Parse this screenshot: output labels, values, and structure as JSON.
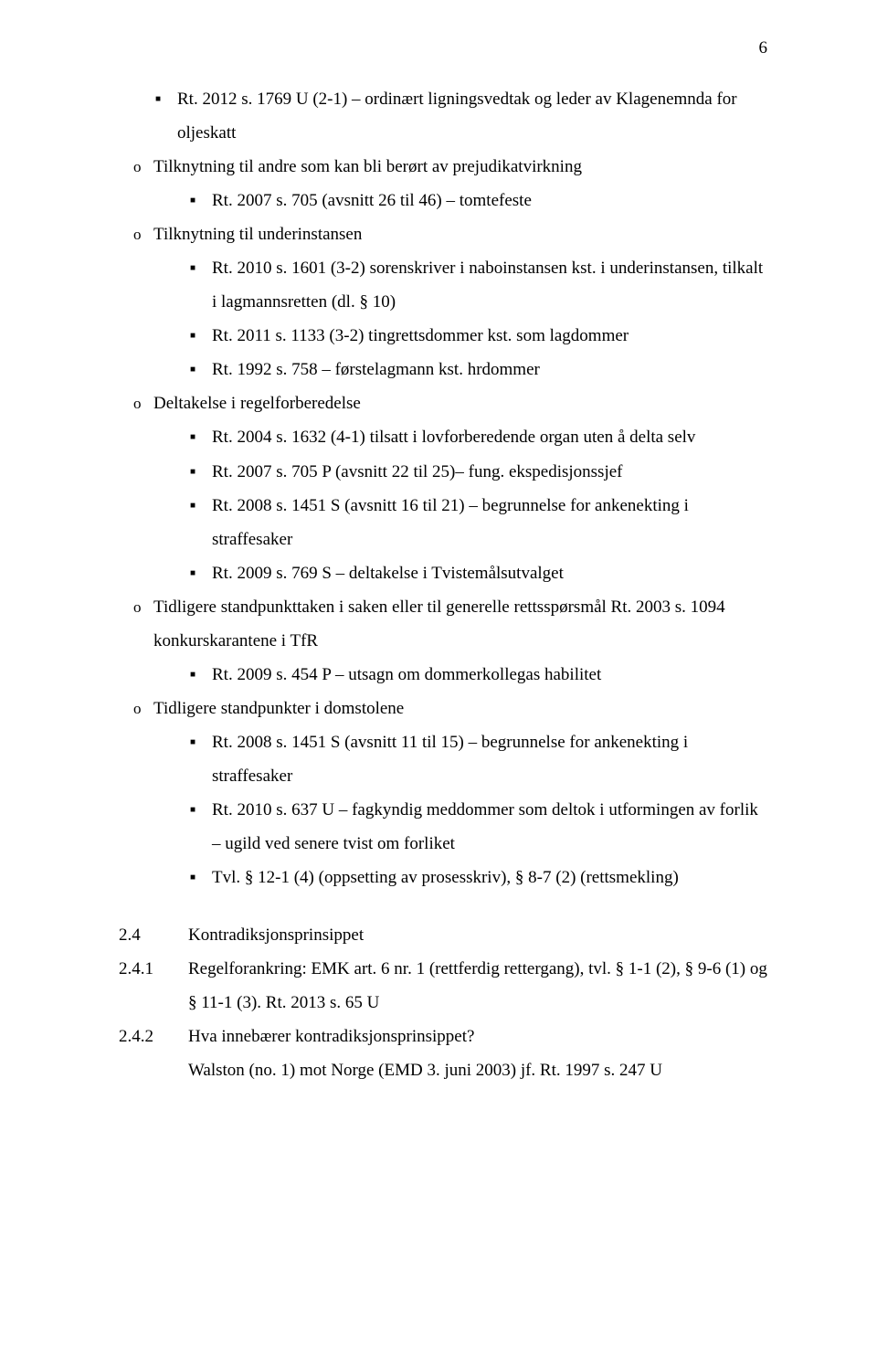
{
  "page_number": "6",
  "bullets": {
    "b1": "Rt. 2012 s. 1769 U (2-1) – ordinært ligningsvedtak og leder av Klagenemnda for oljeskatt",
    "b2": "Tilknytning til andre som kan bli berørt av prejudikatvirkning",
    "b3": "Rt. 2007 s. 705 (avsnitt 26 til 46) – tomtefeste",
    "b4": "Tilknytning til underinstansen",
    "b5": "Rt. 2010 s. 1601 (3-2) sorenskriver i naboinstansen kst. i underinstansen, tilkalt i lagmannsretten (dl. § 10)",
    "b6": "Rt. 2011 s. 1133 (3-2) tingrettsdommer kst. som lagdommer",
    "b7": "Rt. 1992 s. 758 – førstelagmann kst. hrdommer",
    "b8": "Deltakelse i regelforberedelse",
    "b9": "Rt. 2004 s. 1632 (4-1) tilsatt i lovforberedende organ uten å delta selv",
    "b10": "Rt. 2007 s. 705 P (avsnitt 22 til 25)– fung. ekspedisjonssjef",
    "b11": "Rt. 2008 s. 1451 S (avsnitt 16 til 21) – begrunnelse for ankenekting i straffesaker",
    "b12": "Rt. 2009 s. 769 S – deltakelse i Tvistemålsutvalget",
    "b13": "Tidligere standpunkttaken i saken eller til generelle rettsspørsmål Rt. 2003 s. 1094 konkurskarantene i TfR",
    "b14": "Rt. 2009 s. 454 P – utsagn om dommerkollegas habilitet",
    "b15": "Tidligere standpunkter i domstolene",
    "b16": "Rt. 2008 s. 1451 S (avsnitt 11 til 15) – begrunnelse for ankenekting i straffesaker",
    "b17": "Rt. 2010 s. 637 U – fagkyndig meddommer som deltok i utformingen av forlik – ugild ved senere tvist om forliket",
    "b18": "Tvl. § 12-1 (4) (oppsetting av prosesskriv), § 8-7 (2) (rettsmekling)"
  },
  "numbered": {
    "n1_label": "2.4",
    "n1_text": "Kontradiksjonsprinsippet",
    "n2_label": "2.4.1",
    "n2_text": "Regelforankring: EMK art. 6 nr. 1 (rettferdig rettergang), tvl. § 1-1 (2), § 9-6 (1) og § 11-1 (3). Rt. 2013 s. 65 U",
    "n3_label": "2.4.2",
    "n3_text": "Hva innebærer kontradiksjonsprinsippet?",
    "n3_sub": "Walston (no. 1) mot Norge (EMD 3. juni 2003) jf. Rt. 1997 s. 247 U"
  }
}
